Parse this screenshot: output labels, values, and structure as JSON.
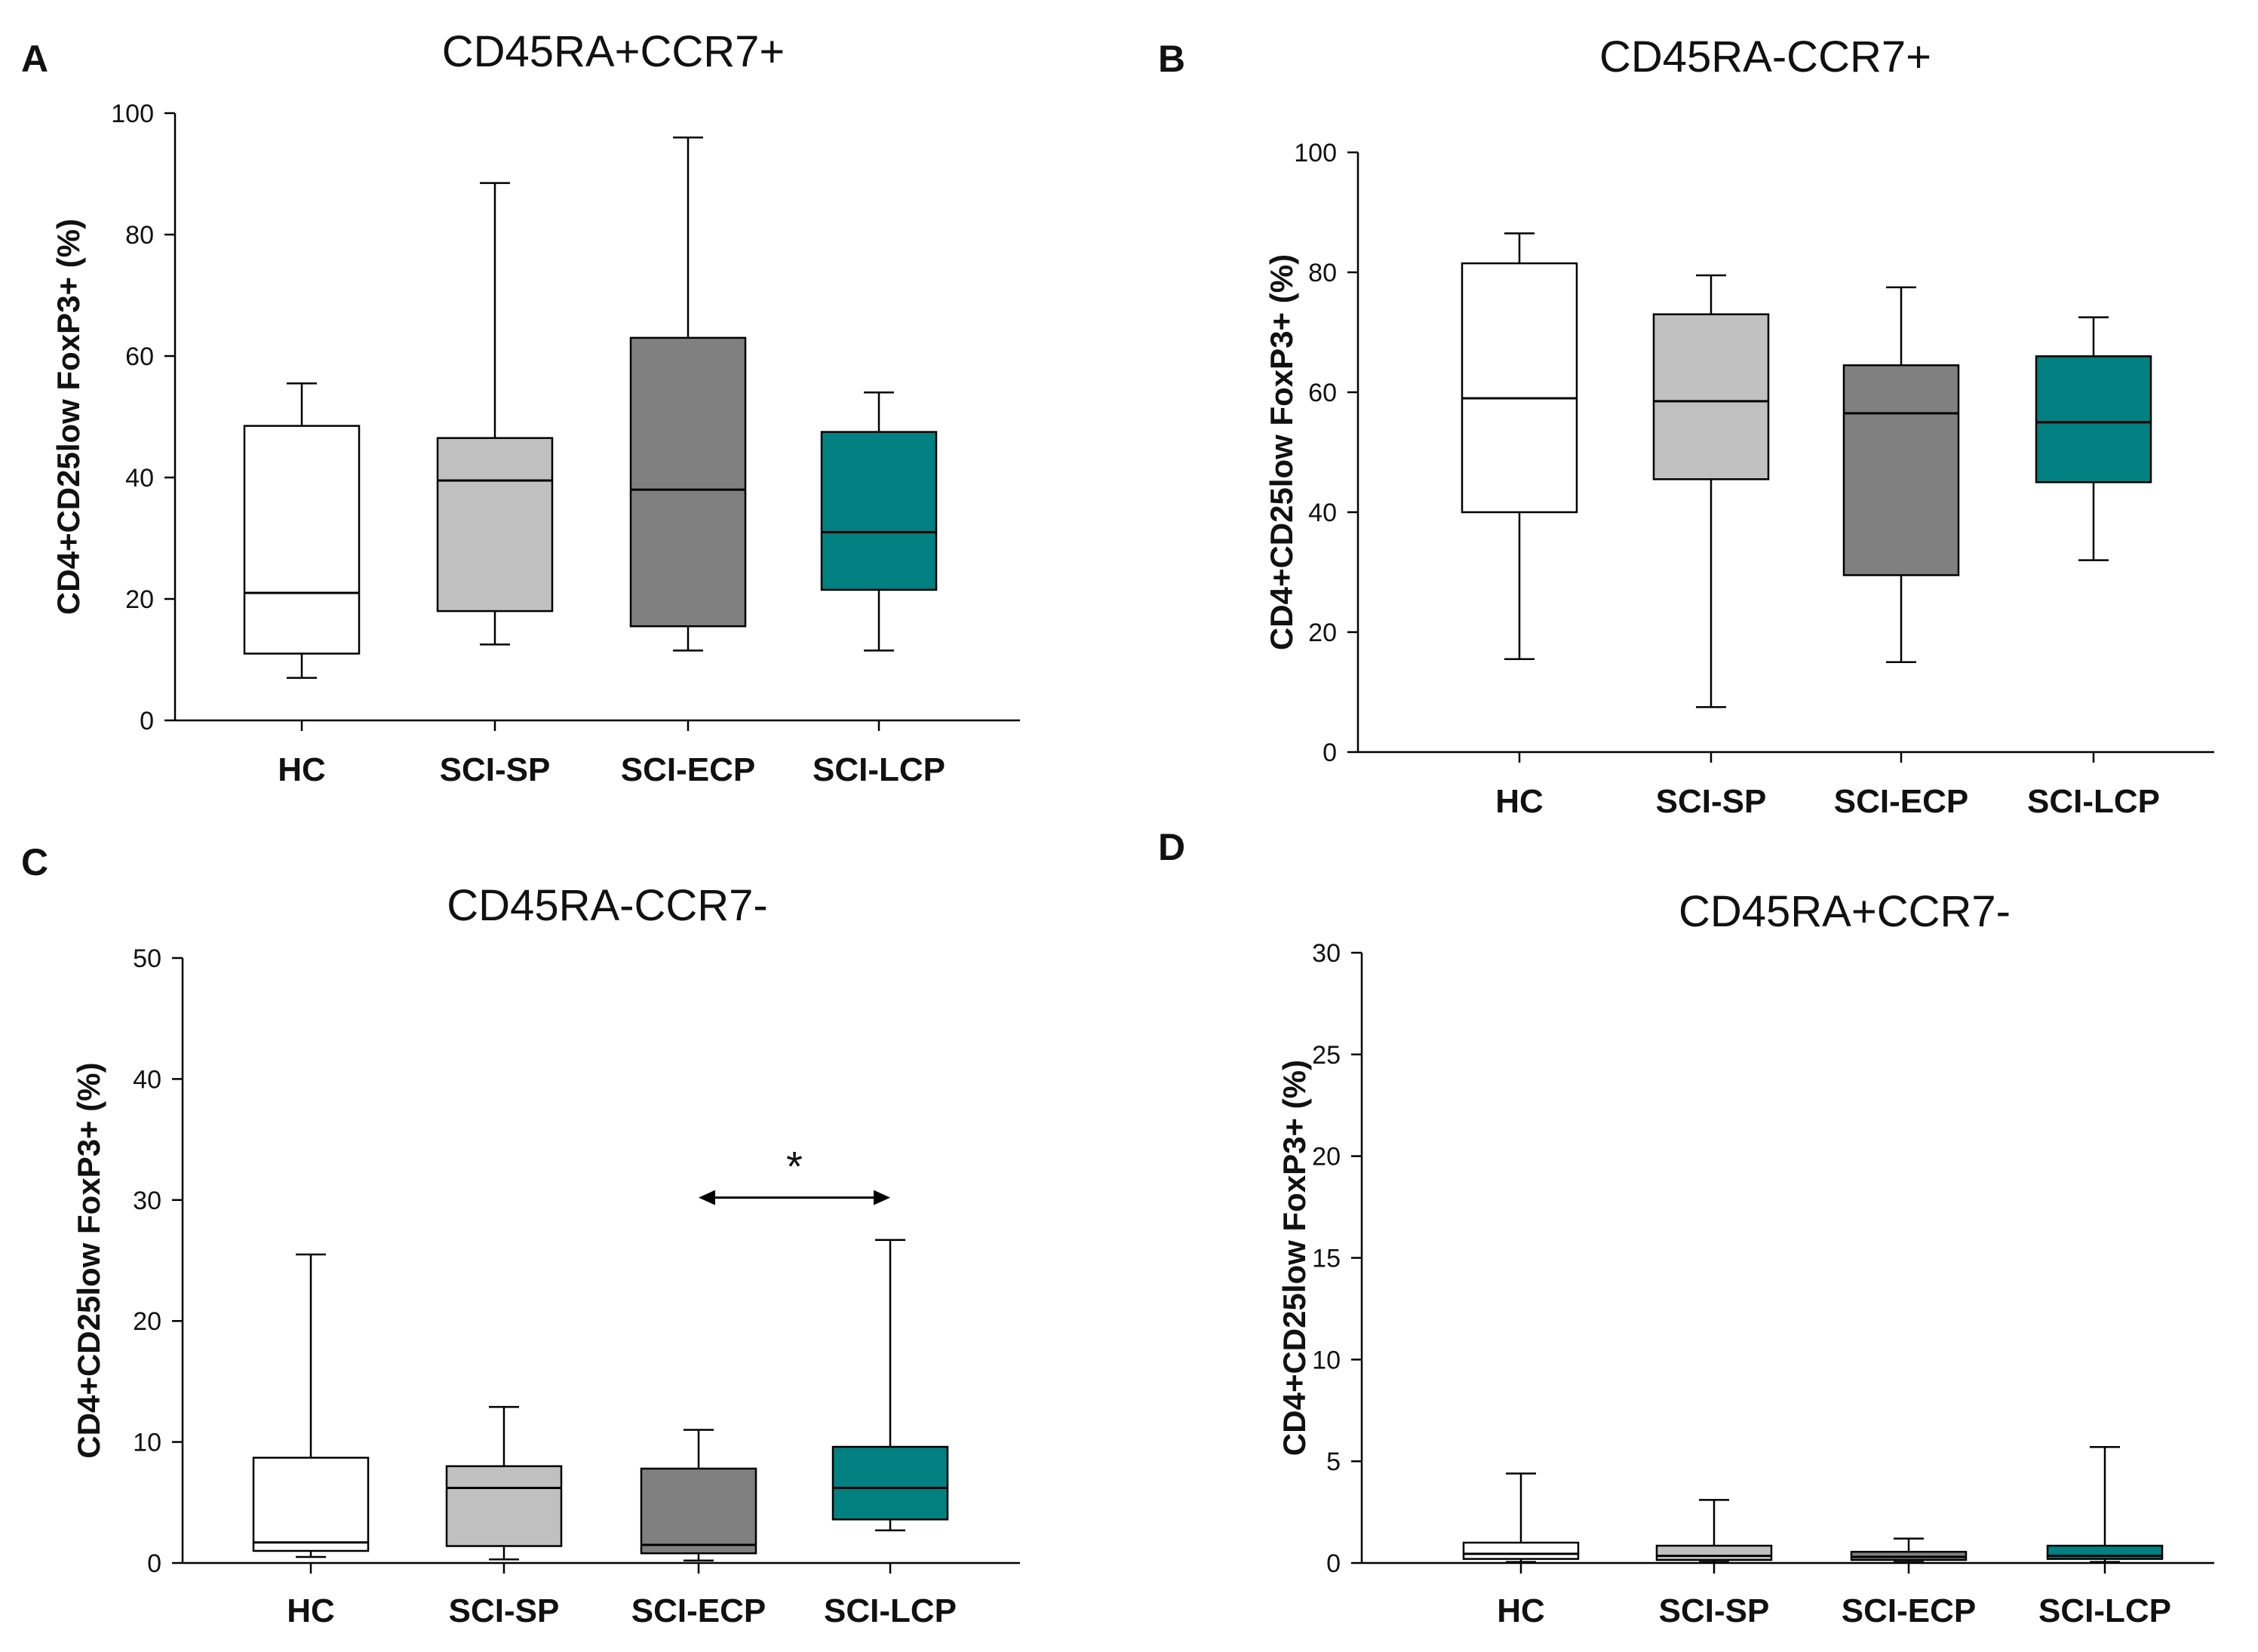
{
  "colors": {
    "HC": "#ffffff",
    "SCI-SP": "#c0c0c0",
    "SCI-ECP": "#808080",
    "SCI-LCP": "#008080",
    "line": "#000000"
  },
  "chart_data": [
    {
      "type": "box",
      "panel": "A",
      "title": "CD45RA+CCR7+",
      "ylabel": "CD4+CD25low FoxP3+ (%)",
      "xlabel": "",
      "ylim": [
        0,
        100
      ],
      "yticks": [
        0,
        20,
        40,
        60,
        80,
        100
      ],
      "categories": [
        "HC",
        "SCI-SP",
        "SCI-ECP",
        "SCI-LCP"
      ],
      "boxes": [
        {
          "min": 7,
          "q1": 11,
          "median": 21,
          "q3": 48.5,
          "max": 55.5
        },
        {
          "min": 12.5,
          "q1": 18,
          "median": 39.5,
          "q3": 46.5,
          "max": 88.5
        },
        {
          "min": 11.5,
          "q1": 15.5,
          "median": 38,
          "q3": 63,
          "max": 96
        },
        {
          "min": 11.5,
          "q1": 21.5,
          "median": 31,
          "q3": 47.5,
          "max": 54
        }
      ]
    },
    {
      "type": "box",
      "panel": "B",
      "title": "CD45RA-CCR7+",
      "ylabel": "CD4+CD25low FoxP3+ (%)",
      "xlabel": "",
      "ylim": [
        0,
        100
      ],
      "yticks": [
        0,
        20,
        40,
        60,
        80,
        100
      ],
      "categories": [
        "HC",
        "SCI-SP",
        "SCI-ECP",
        "SCI-LCP"
      ],
      "boxes": [
        {
          "min": 15.5,
          "q1": 40,
          "median": 59,
          "q3": 81.5,
          "max": 86.5
        },
        {
          "min": 7.5,
          "q1": 45.5,
          "median": 58.5,
          "q3": 73,
          "max": 79.5
        },
        {
          "min": 15,
          "q1": 29.5,
          "median": 56.5,
          "q3": 64.5,
          "max": 77.5
        },
        {
          "min": 32,
          "q1": 45,
          "median": 55,
          "q3": 66,
          "max": 72.5
        }
      ]
    },
    {
      "type": "box",
      "panel": "C",
      "title": "CD45RA-CCR7-",
      "ylabel": "CD4+CD25low FoxP3+ (%)",
      "xlabel": "",
      "ylim": [
        0,
        50
      ],
      "yticks": [
        0,
        10,
        20,
        30,
        40,
        50
      ],
      "categories": [
        "HC",
        "SCI-SP",
        "SCI-ECP",
        "SCI-LCP"
      ],
      "boxes": [
        {
          "min": 0.5,
          "q1": 1,
          "median": 1.7,
          "q3": 8.7,
          "max": 25.5
        },
        {
          "min": 0.3,
          "q1": 1.4,
          "median": 6.2,
          "q3": 8,
          "max": 12.9
        },
        {
          "min": 0.2,
          "q1": 0.8,
          "median": 1.5,
          "q3": 7.8,
          "max": 11
        },
        {
          "min": 2.7,
          "q1": 3.6,
          "median": 6.2,
          "q3": 9.6,
          "max": 26.7
        }
      ],
      "annotation": {
        "from": "SCI-ECP",
        "to": "SCI-LCP",
        "y": 30.2,
        "label": "*"
      }
    },
    {
      "type": "box",
      "panel": "D",
      "title": "CD45RA+CCR7-",
      "ylabel": "CD4+CD25low FoxP3+ (%)",
      "xlabel": "",
      "ylim": [
        0,
        30
      ],
      "yticks": [
        0,
        5,
        10,
        15,
        20,
        25,
        30
      ],
      "categories": [
        "HC",
        "SCI-SP",
        "SCI-ECP",
        "SCI-LCP"
      ],
      "boxes": [
        {
          "min": 0.05,
          "q1": 0.2,
          "median": 0.45,
          "q3": 1,
          "max": 4.4
        },
        {
          "min": 0.05,
          "q1": 0.15,
          "median": 0.35,
          "q3": 0.85,
          "max": 3.1
        },
        {
          "min": 0.05,
          "q1": 0.15,
          "median": 0.3,
          "q3": 0.55,
          "max": 1.2
        },
        {
          "min": 0.05,
          "q1": 0.2,
          "median": 0.35,
          "q3": 0.85,
          "max": 5.7
        }
      ]
    }
  ]
}
